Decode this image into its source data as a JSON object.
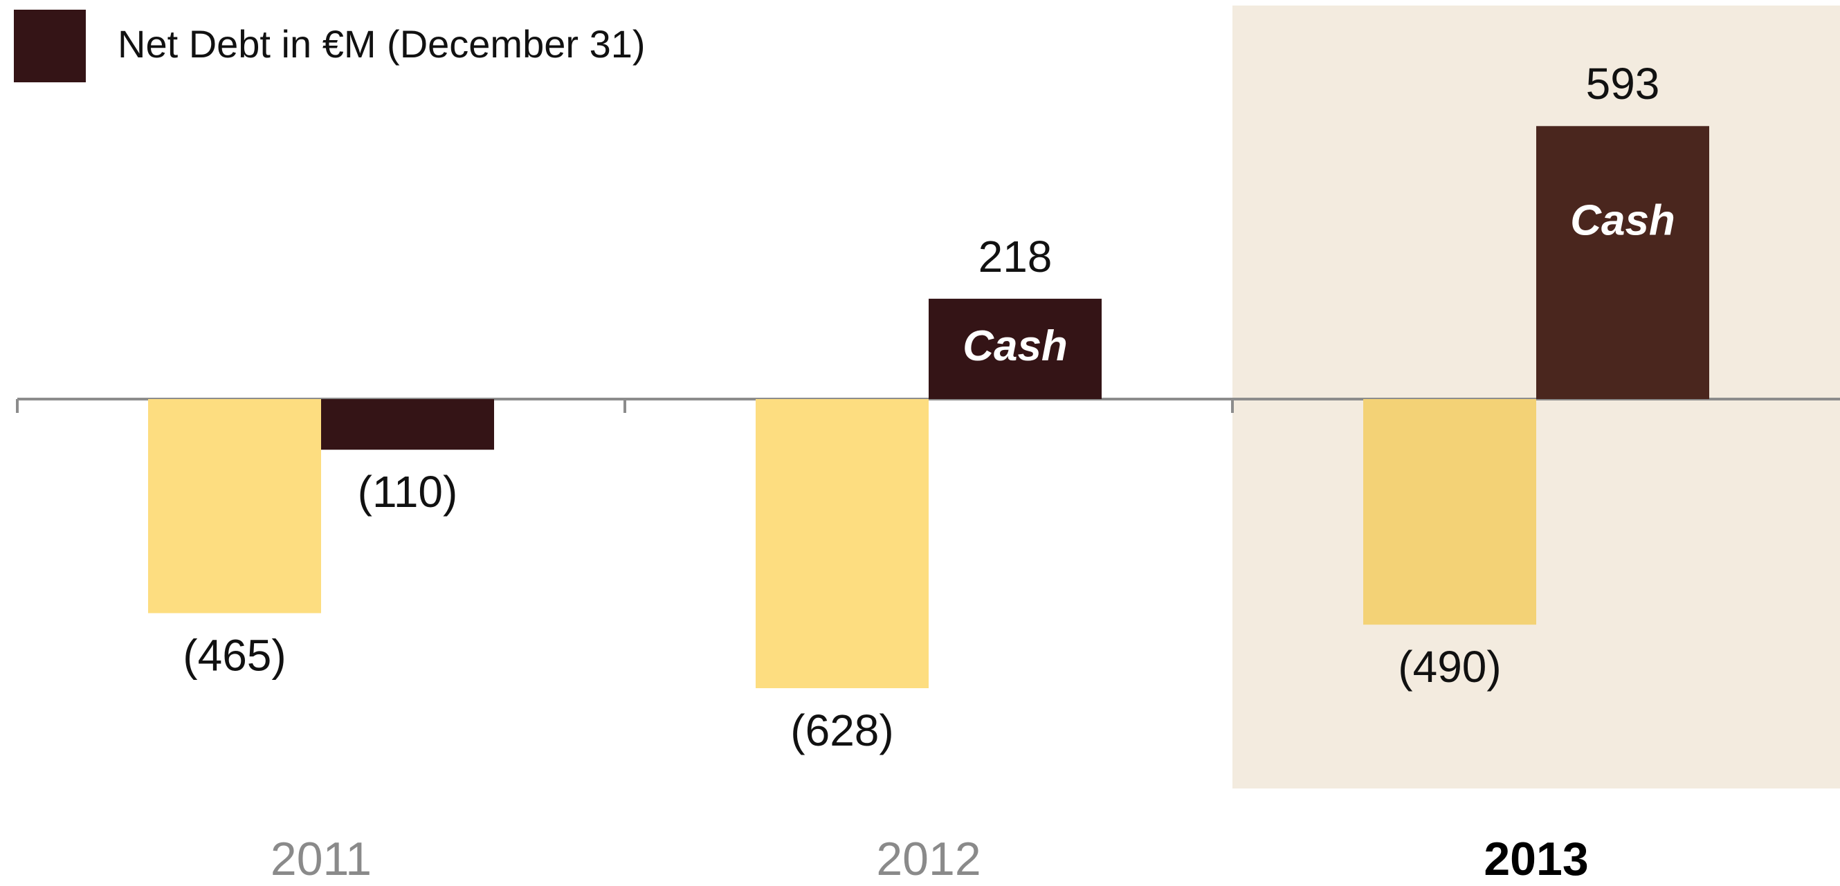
{
  "chart_data": {
    "type": "bar",
    "categories": [
      "2011",
      "2012",
      "2013"
    ],
    "highlight_index": 2,
    "highlight_color": "#f3ebdf",
    "series": [
      {
        "colors": [
          "#fddd80",
          "#fddd80",
          "#f3d276"
        ],
        "values": [
          -465,
          -628,
          -490
        ],
        "value_labels": [
          "(465)",
          "(628)",
          "(490)"
        ]
      },
      {
        "name": "Net Debt in €M (December 31)",
        "color": "#341416",
        "colors": [
          "#341416",
          "#341416",
          "#4a261e"
        ],
        "values": [
          -110,
          218,
          593
        ],
        "value_labels": [
          "(110)",
          "218",
          "593"
        ],
        "bar_labels": [
          null,
          "Cash",
          "Cash"
        ]
      }
    ]
  }
}
